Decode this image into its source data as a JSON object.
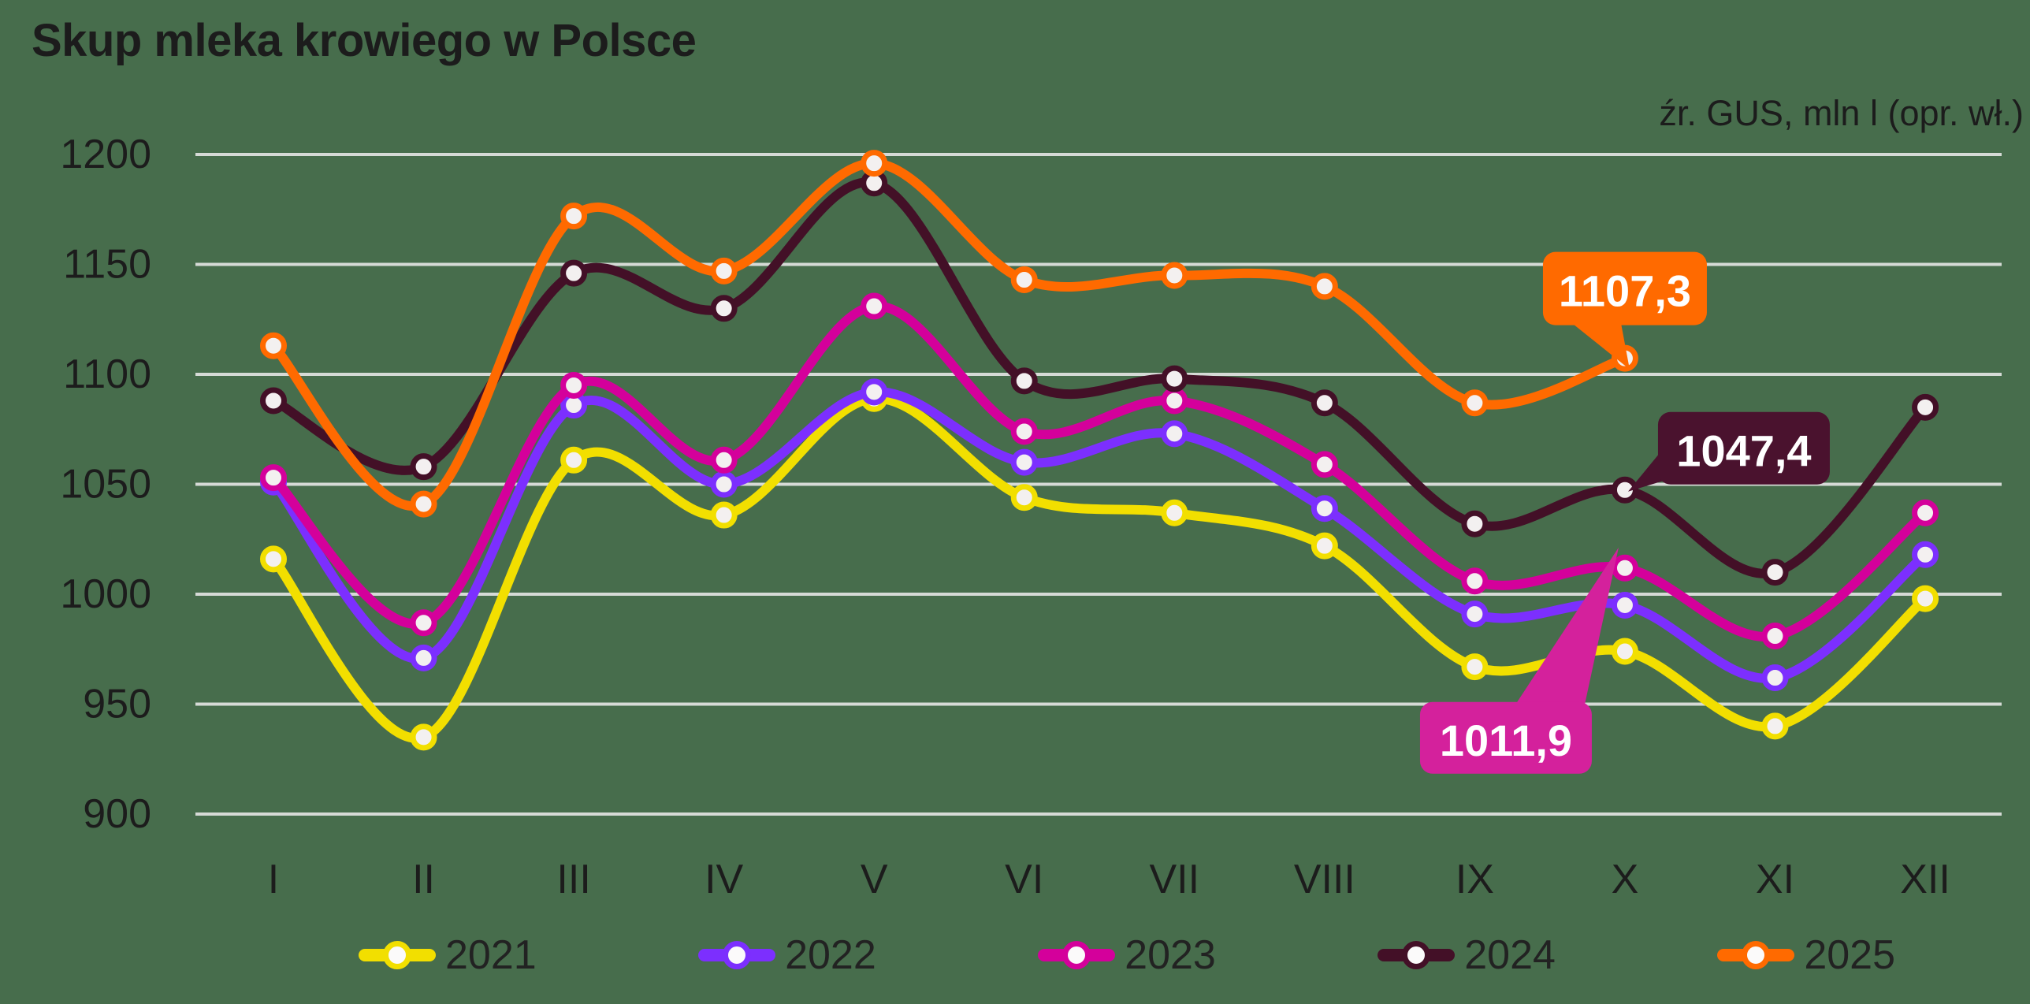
{
  "title": "Skup mleka krowiego w Polsce",
  "source_note": "źr. GUS, mln l (opr. wł.)",
  "colors": {
    "background": "#476D4C",
    "gridline": "#D6DAD6",
    "marker_fill": "#F3F0F0",
    "text": "#1C1C1C",
    "annotation_text": "#FFFFFF"
  },
  "chart_data": {
    "type": "line",
    "title": "Skup mleka krowiego w Polsce",
    "unit_note": "źr. GUS, mln l (opr. wł.)",
    "categories": [
      "I",
      "II",
      "III",
      "IV",
      "V",
      "VI",
      "VII",
      "VIII",
      "IX",
      "X",
      "XI",
      "XII"
    ],
    "yticks": [
      "1200",
      "1150",
      "1100",
      "1050",
      "1000",
      "950",
      "900"
    ],
    "ylim": [
      900,
      1200
    ],
    "grid": true,
    "legend_position": "bottom",
    "series": [
      {
        "name": "2021",
        "color": "#F2DF00",
        "values": [
          1016,
          935,
          1061,
          1036,
          1089,
          1044,
          1037,
          1022,
          967,
          974,
          940,
          998
        ]
      },
      {
        "name": "2022",
        "color": "#7C2FFE",
        "values": [
          1051,
          971,
          1086,
          1050,
          1092,
          1060,
          1073,
          1039,
          991,
          995,
          962,
          1018
        ]
      },
      {
        "name": "2023",
        "color": "#D4009B",
        "values": [
          1053,
          987,
          1095,
          1061,
          1131,
          1074,
          1088,
          1059,
          1006,
          1011.9,
          981,
          1037
        ]
      },
      {
        "name": "2024",
        "color": "#431027",
        "values": [
          1088,
          1058,
          1146,
          1130,
          1187,
          1097,
          1098,
          1087,
          1032,
          1047.4,
          1010,
          1085
        ]
      },
      {
        "name": "2025",
        "color": "#FF6A00",
        "values": [
          1113,
          1041,
          1172,
          1147,
          1196,
          1143,
          1145,
          1140,
          1087,
          1107.3,
          null,
          null
        ]
      }
    ],
    "annotations": [
      {
        "series": "2025",
        "category": "X",
        "label": "1107,3",
        "box_color": "#FF6A00",
        "text_color": "#FFFFFF"
      },
      {
        "series": "2024",
        "category": "X",
        "label": "1047,4",
        "box_color": "#4A122E",
        "text_color": "#FFFFFF"
      },
      {
        "series": "2023",
        "category": "X",
        "label": "1011,9",
        "box_color": "#D4219C",
        "text_color": "#FFFFFF"
      }
    ]
  }
}
